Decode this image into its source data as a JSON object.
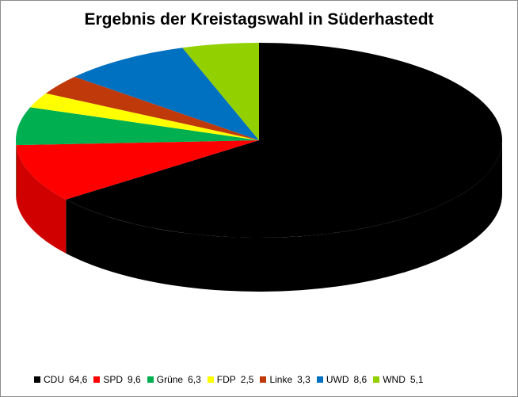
{
  "chart_data": {
    "type": "pie",
    "title": "Ergebnis der Kreistagswahl in Süderhastedt",
    "categories": [
      "CDU",
      "SPD",
      "Grüne",
      "FDP",
      "Linke",
      "UWD",
      "WND"
    ],
    "values": [
      64.6,
      9.6,
      6.3,
      2.5,
      3.3,
      8.6,
      5.1
    ],
    "value_labels": [
      "64,6",
      "9,6",
      "6,3",
      "2,5",
      "3,3",
      "8,6",
      "5,1"
    ],
    "colors": [
      "#000000",
      "#ff0000",
      "#00b050",
      "#ffff00",
      "#c0390b",
      "#0070c0",
      "#92d000"
    ],
    "legend_position": "bottom",
    "style": "3d"
  }
}
